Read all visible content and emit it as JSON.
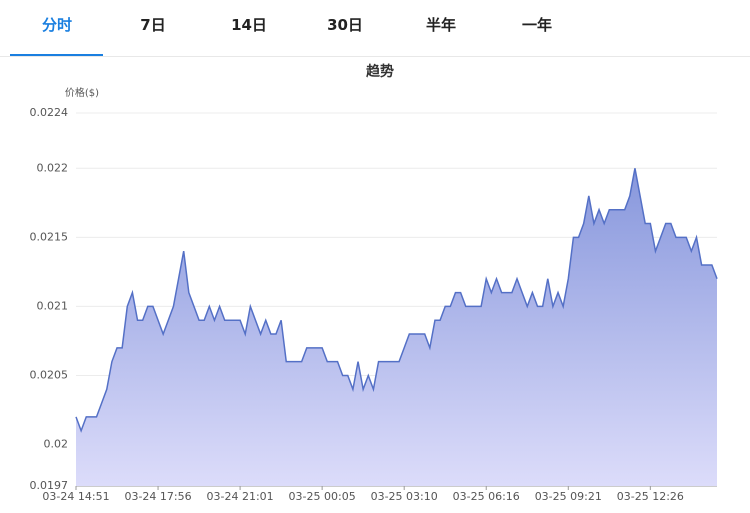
{
  "tabs": [
    "分时",
    "7日",
    "14日",
    "30日",
    "半年",
    "一年"
  ],
  "chart_data": {
    "type": "area",
    "title": "趋势",
    "y_label": "价格($)",
    "categories": [
      "03-24 14:51",
      null,
      null,
      null,
      null,
      null,
      null,
      null,
      null,
      null,
      null,
      null,
      null,
      null,
      null,
      null,
      "03-24 17:56",
      null,
      null,
      null,
      null,
      null,
      null,
      null,
      null,
      null,
      null,
      null,
      null,
      null,
      null,
      null,
      "03-24 21:01",
      null,
      null,
      null,
      null,
      null,
      null,
      null,
      null,
      null,
      null,
      null,
      null,
      null,
      null,
      null,
      "03-25 00:05",
      null,
      null,
      null,
      null,
      null,
      null,
      null,
      null,
      null,
      null,
      null,
      null,
      null,
      null,
      null,
      "03-25 03:10",
      null,
      null,
      null,
      null,
      null,
      null,
      null,
      null,
      null,
      null,
      null,
      null,
      null,
      null,
      null,
      "03-25 06:16",
      null,
      null,
      null,
      null,
      null,
      null,
      null,
      null,
      null,
      null,
      null,
      null,
      null,
      null,
      null,
      "03-25 09:21",
      null,
      null,
      null,
      null,
      null,
      null,
      null,
      null,
      null,
      null,
      null,
      null,
      null,
      null,
      null,
      "03-25 12:26",
      null,
      null,
      null,
      null,
      null,
      null,
      null,
      null,
      null,
      null,
      null,
      null,
      null
    ],
    "series": [
      {
        "color": "#5470c6",
        "values": [
          0.0202,
          0.0201,
          0.0202,
          0.0202,
          0.0202,
          0.0203,
          0.0204,
          0.0206,
          0.0207,
          0.0207,
          0.021,
          0.0211,
          0.0209,
          0.0209,
          0.021,
          0.021,
          0.0209,
          0.0208,
          0.0209,
          0.021,
          0.0212,
          0.0214,
          0.0211,
          0.021,
          0.0209,
          0.0209,
          0.021,
          0.0209,
          0.021,
          0.0209,
          0.0209,
          0.0209,
          0.0209,
          0.0208,
          0.021,
          0.0209,
          0.0208,
          0.0209,
          0.0208,
          0.0208,
          0.0209,
          0.0206,
          0.0206,
          0.0206,
          0.0206,
          0.0207,
          0.0207,
          0.0207,
          0.0207,
          0.0206,
          0.0206,
          0.0206,
          0.0205,
          0.0205,
          0.0204,
          0.0206,
          0.0204,
          0.0205,
          0.0204,
          0.0206,
          0.0206,
          0.0206,
          0.0206,
          0.0206,
          0.0207,
          0.0208,
          0.0208,
          0.0208,
          0.0208,
          0.0207,
          0.0209,
          0.0209,
          0.021,
          0.021,
          0.0211,
          0.0211,
          0.021,
          0.021,
          0.021,
          0.021,
          0.0212,
          0.0211,
          0.0212,
          0.0211,
          0.0211,
          0.0211,
          0.0212,
          0.0211,
          0.021,
          0.0211,
          0.021,
          0.021,
          0.0212,
          0.021,
          0.0211,
          0.021,
          0.0212,
          0.0215,
          0.0215,
          0.0216,
          0.0218,
          0.0216,
          0.0217,
          0.0216,
          0.0217,
          0.0217,
          0.0217,
          0.0217,
          0.0218,
          0.022,
          0.0218,
          0.0216,
          0.0216,
          0.0214,
          0.0215,
          0.0216,
          0.0216,
          0.0215,
          0.0215,
          0.0215,
          0.0214,
          0.0215,
          0.0213,
          0.0213,
          0.0213,
          0.0212
        ]
      }
    ],
    "ylim": [
      0.0197,
      0.0224
    ],
    "yticks": [
      0.0197,
      0.02,
      0.0205,
      0.021,
      0.0215,
      0.022,
      0.0224
    ],
    "grid": true
  }
}
